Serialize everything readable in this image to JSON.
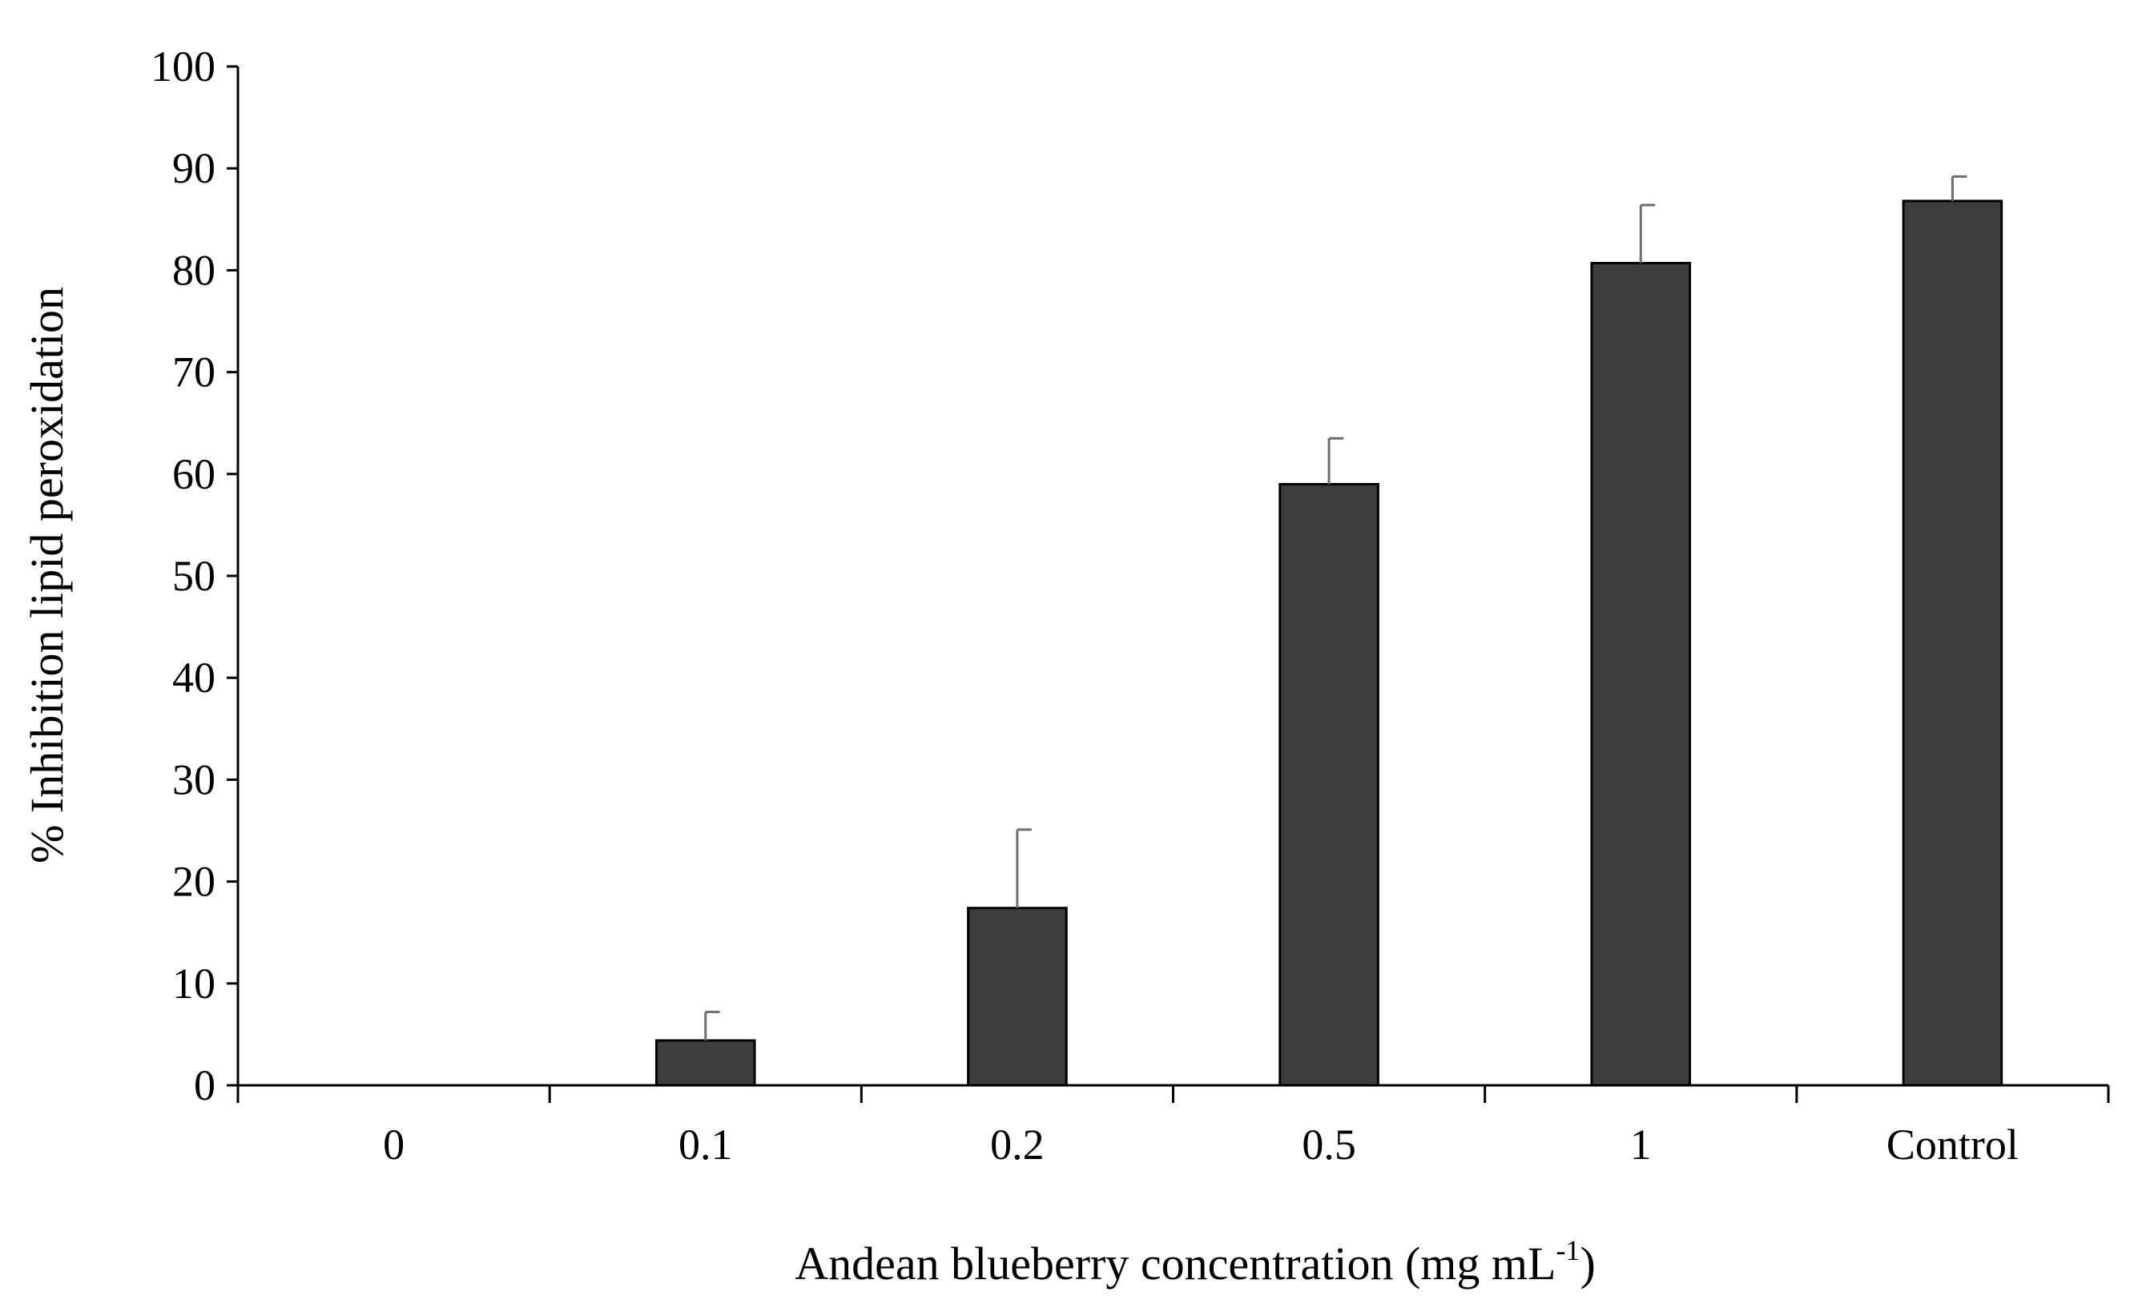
{
  "chart_data": {
    "type": "bar",
    "title": "",
    "xlabel": "Andean blueberry concentration  (mg mL",
    "xlabel_superscript": "-1",
    "xlabel_suffix": ")",
    "ylabel": "% Inhibition lipid peroxidation",
    "categories": [
      "0",
      "0.1",
      "0.2",
      "0.5",
      "1",
      "Control"
    ],
    "series": [
      {
        "values": [
          0,
          4.4,
          17.4,
          59.0,
          80.7,
          86.8
        ],
        "errors": [
          0,
          2.8,
          7.7,
          4.5,
          5.7,
          2.4
        ]
      }
    ],
    "ylim": [
      0,
      100
    ],
    "yticks": [
      0,
      10,
      20,
      30,
      40,
      50,
      60,
      70,
      80,
      90,
      100
    ],
    "grid": false,
    "legend": "none",
    "colors": {
      "bar": "#3d3d3d",
      "bar_edge": "#000000",
      "error_bar": "#6e6e6e",
      "axis": "#000000"
    }
  }
}
